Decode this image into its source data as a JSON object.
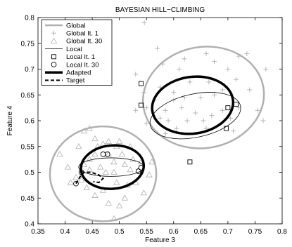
{
  "chart_data": {
    "type": "scatter",
    "title": "BAYESIAN HILL−CLIMBING",
    "xlabel": "Feature 3",
    "ylabel": "Feature 4",
    "xlim": [
      0.35,
      0.8
    ],
    "ylim": [
      0.4,
      0.8
    ],
    "xticks": [
      "0.35",
      "0.4",
      "0.45",
      "0.5",
      "0.55",
      "0.6",
      "0.65",
      "0.7",
      "0.75",
      "0.8"
    ],
    "yticks": [
      "0.4",
      "0.45",
      "0.5",
      "0.55",
      "0.6",
      "0.65",
      "0.7",
      "0.75",
      "0.8"
    ],
    "grid": false,
    "legend_position": "top-left",
    "legend": [
      {
        "label": "Global",
        "kind": "line",
        "color": "#b0b0b0",
        "width": 2.5,
        "dash": ""
      },
      {
        "label": "Global It. 1",
        "kind": "marker",
        "marker": "plus",
        "color": "#b0b0b0"
      },
      {
        "label": "Global It. 30",
        "kind": "marker",
        "marker": "triangle",
        "color": "#b0b0b0"
      },
      {
        "label": "Local",
        "kind": "line",
        "color": "#000000",
        "width": 0.8,
        "dash": ""
      },
      {
        "label": "Local It. 1",
        "kind": "marker",
        "marker": "square",
        "color": "#000000"
      },
      {
        "label": "Local It. 30",
        "kind": "marker",
        "marker": "circle",
        "color": "#000000"
      },
      {
        "label": "Adapted",
        "kind": "line",
        "color": "#000000",
        "width": 3.5,
        "dash": ""
      },
      {
        "label": "Target",
        "kind": "line",
        "color": "#000000",
        "width": 2,
        "dash": "5,3"
      }
    ],
    "series": [
      {
        "name": "Global It. 1",
        "marker": "plus",
        "color": "#b0b0b0",
        "points": [
          [
            0.546,
            0.79
          ],
          [
            0.57,
            0.74
          ],
          [
            0.62,
            0.72
          ],
          [
            0.58,
            0.71
          ],
          [
            0.61,
            0.7
          ],
          [
            0.66,
            0.73
          ],
          [
            0.675,
            0.715
          ],
          [
            0.7,
            0.7
          ],
          [
            0.63,
            0.675
          ],
          [
            0.665,
            0.675
          ],
          [
            0.72,
            0.725
          ],
          [
            0.735,
            0.73
          ],
          [
            0.77,
            0.7
          ],
          [
            0.74,
            0.66
          ],
          [
            0.715,
            0.68
          ],
          [
            0.69,
            0.66
          ],
          [
            0.675,
            0.65
          ],
          [
            0.65,
            0.645
          ],
          [
            0.62,
            0.645
          ],
          [
            0.6,
            0.64
          ],
          [
            0.615,
            0.625
          ],
          [
            0.585,
            0.62
          ],
          [
            0.575,
            0.605
          ],
          [
            0.605,
            0.585
          ],
          [
            0.625,
            0.6
          ],
          [
            0.64,
            0.615
          ],
          [
            0.655,
            0.6
          ],
          [
            0.67,
            0.61
          ],
          [
            0.69,
            0.62
          ],
          [
            0.71,
            0.58
          ],
          [
            0.72,
            0.625
          ],
          [
            0.755,
            0.62
          ],
          [
            0.765,
            0.6
          ],
          [
            0.705,
            0.605
          ],
          [
            0.575,
            0.665
          ],
          [
            0.6,
            0.655
          ],
          [
            0.545,
            0.655
          ],
          [
            0.55,
            0.625
          ],
          [
            0.565,
            0.64
          ],
          [
            0.55,
            0.595
          ],
          [
            0.53,
            0.62
          ],
          [
            0.53,
            0.69
          ],
          [
            0.59,
            0.6
          ],
          [
            0.585,
            0.575
          ],
          [
            0.66,
            0.585
          ]
        ]
      },
      {
        "name": "Global It. 30",
        "marker": "triangle",
        "color": "#b0b0b0",
        "points": [
          [
            0.39,
            0.535
          ],
          [
            0.405,
            0.51
          ],
          [
            0.42,
            0.49
          ],
          [
            0.41,
            0.48
          ],
          [
            0.425,
            0.55
          ],
          [
            0.435,
            0.58
          ],
          [
            0.445,
            0.585
          ],
          [
            0.455,
            0.565
          ],
          [
            0.46,
            0.55
          ],
          [
            0.47,
            0.555
          ],
          [
            0.48,
            0.56
          ],
          [
            0.5,
            0.56
          ],
          [
            0.52,
            0.55
          ],
          [
            0.525,
            0.525
          ],
          [
            0.54,
            0.52
          ],
          [
            0.52,
            0.505
          ],
          [
            0.53,
            0.48
          ],
          [
            0.545,
            0.46
          ],
          [
            0.555,
            0.495
          ],
          [
            0.56,
            0.52
          ],
          [
            0.51,
            0.45
          ],
          [
            0.5,
            0.435
          ],
          [
            0.48,
            0.44
          ],
          [
            0.455,
            0.455
          ],
          [
            0.44,
            0.47
          ],
          [
            0.43,
            0.485
          ],
          [
            0.445,
            0.525
          ],
          [
            0.445,
            0.505
          ],
          [
            0.465,
            0.51
          ],
          [
            0.475,
            0.5
          ],
          [
            0.49,
            0.52
          ],
          [
            0.505,
            0.535
          ],
          [
            0.495,
            0.48
          ],
          [
            0.515,
            0.475
          ],
          [
            0.49,
            0.41
          ],
          [
            0.47,
            0.465
          ],
          [
            0.455,
            0.535
          ],
          [
            0.435,
            0.515
          ],
          [
            0.48,
            0.535
          ],
          [
            0.49,
            0.5
          ],
          [
            0.51,
            0.515
          ],
          [
            0.495,
            0.55
          ]
        ]
      },
      {
        "name": "Local It. 1",
        "marker": "square",
        "color": "#000000",
        "points": [
          [
            0.54,
            0.672
          ],
          [
            0.54,
            0.63
          ],
          [
            0.7,
            0.625
          ],
          [
            0.715,
            0.632
          ],
          [
            0.697,
            0.585
          ],
          [
            0.63,
            0.52
          ]
        ]
      },
      {
        "name": "Local It. 30",
        "marker": "circle",
        "color": "#000000",
        "points": [
          [
            0.47,
            0.535
          ],
          [
            0.478,
            0.535
          ],
          [
            0.43,
            0.5
          ],
          [
            0.42,
            0.478
          ],
          [
            0.535,
            0.502
          ],
          [
            0.54,
            0.509
          ]
        ]
      }
    ],
    "curves": [
      {
        "name": "Global",
        "kind": "ellipse",
        "cx": 0.655,
        "cy": 0.645,
        "rx": 0.112,
        "ry": 0.098,
        "rot": -10,
        "color": "#b0b0b0",
        "width": 2.5,
        "dash": ""
      },
      {
        "name": "Global",
        "kind": "ellipse",
        "cx": 0.47,
        "cy": 0.497,
        "rx": 0.098,
        "ry": 0.092,
        "rot": 0,
        "color": "#b0b0b0",
        "width": 2.5,
        "dash": ""
      },
      {
        "name": "Local",
        "kind": "ellipse",
        "cx": 0.64,
        "cy": 0.61,
        "rx": 0.085,
        "ry": 0.042,
        "rot": -12,
        "color": "#000000",
        "width": 0.8,
        "dash": ""
      },
      {
        "name": "Local",
        "kind": "ellipse",
        "cx": 0.485,
        "cy": 0.51,
        "rx": 0.06,
        "ry": 0.018,
        "rot": 0,
        "color": "#000000",
        "width": 0.8,
        "dash": ""
      },
      {
        "name": "Adapted",
        "kind": "ellipse",
        "cx": 0.635,
        "cy": 0.63,
        "rx": 0.075,
        "ry": 0.055,
        "rot": -8,
        "color": "#000000",
        "width": 3.5,
        "dash": ""
      },
      {
        "name": "Adapted",
        "kind": "ellipse",
        "cx": 0.487,
        "cy": 0.51,
        "rx": 0.058,
        "ry": 0.042,
        "rot": -5,
        "color": "#000000",
        "width": 3.5,
        "dash": ""
      },
      {
        "name": "Target",
        "kind": "polyline",
        "points": [
          [
            0.42,
            0.478
          ],
          [
            0.428,
            0.492
          ],
          [
            0.435,
            0.5
          ],
          [
            0.448,
            0.5
          ],
          [
            0.462,
            0.495
          ],
          [
            0.47,
            0.488
          ],
          [
            0.462,
            0.48
          ],
          [
            0.452,
            0.482
          ]
        ],
        "color": "#000000",
        "width": 2,
        "dash": "5,3"
      }
    ]
  }
}
